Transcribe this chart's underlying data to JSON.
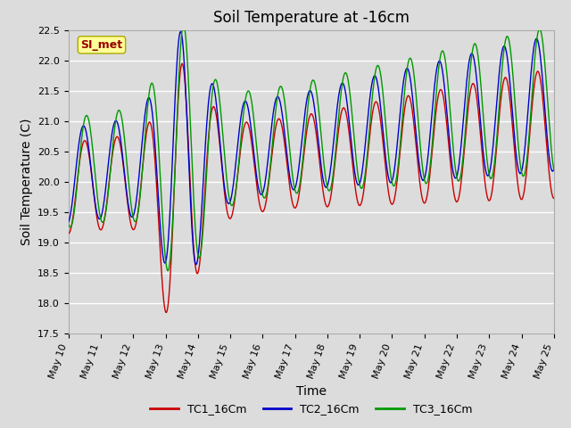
{
  "title": "Soil Temperature at -16cm",
  "xlabel": "Time",
  "ylabel": "Soil Temperature (C)",
  "ylim": [
    17.5,
    22.5
  ],
  "x_tick_labels": [
    "May 10",
    "May 11",
    "May 12",
    "May 13",
    "May 14",
    "May 15",
    "May 16",
    "May 17",
    "May 18",
    "May 19",
    "May 20",
    "May 21",
    "May 22",
    "May 23",
    "May 24",
    "May 25"
  ],
  "colors": {
    "TC1": "#cc0000",
    "TC2": "#0000cc",
    "TC3": "#009900"
  },
  "legend_labels": [
    "TC1_16Cm",
    "TC2_16Cm",
    "TC3_16Cm"
  ],
  "watermark_text": "SI_met",
  "watermark_fg": "#990000",
  "watermark_bg": "#ffff99",
  "bg_color": "#dcdcdc",
  "grid_color": "#ffffff",
  "title_fontsize": 12,
  "axis_label_fontsize": 10,
  "tick_fontsize": 8,
  "figsize": [
    6.4,
    4.8
  ],
  "dpi": 100
}
